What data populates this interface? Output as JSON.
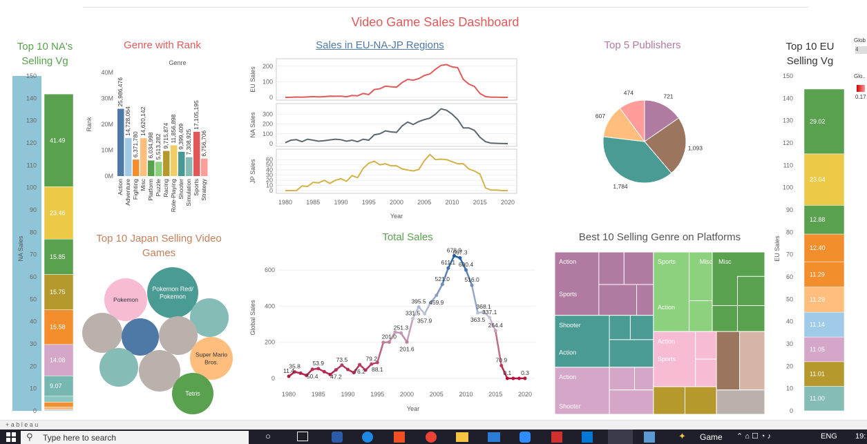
{
  "dashboard_title": "Video Game Sales Dashboard",
  "headers": {
    "na": "Top 10 NA's Selling Vg",
    "genre": "Genre with Rank",
    "regions": "Sales in EU-NA-JP Regions",
    "publishers": "Top 5 Publishers",
    "eu": "Top 10 EU Selling Vg",
    "japan": "Top 10 Japan Selling Video Games",
    "total": "Total Sales",
    "treemap": "Best 10 Selling Genre on Platforms"
  },
  "right_edge": {
    "glob1": "Glob",
    "glob1_val": "4",
    "glob2": "Glo..",
    "glob2_val": "0.17"
  },
  "footer": {
    "brand": "+ a b l e a u"
  },
  "taskbar": {
    "search_placeholder": "Type here to search",
    "game_label": "Game",
    "lang": "ENG",
    "time": "19:"
  },
  "colors": {
    "red": "#e05a5a",
    "slate": "#5b6770",
    "gold": "#d4b24a",
    "blue": "#1f4e79"
  },
  "chart_data": [
    {
      "id": "na_stack",
      "type": "bar",
      "ylabel": "NA Sales",
      "ylim": [
        0,
        150
      ],
      "ticks": [
        0,
        10,
        20,
        30,
        40,
        50,
        60,
        70,
        80,
        90,
        100,
        110,
        120,
        130,
        140,
        150
      ],
      "total_bar_value": 150,
      "segments": [
        {
          "value": 0.5,
          "label": "",
          "color": "#9bc9e6"
        },
        {
          "value": 1.2,
          "label": "",
          "color": "#f6b77b"
        },
        {
          "value": 2.2,
          "label": "",
          "color": "#f28e2b"
        },
        {
          "value": 2.7,
          "label": "",
          "color": "#8bc7bf"
        },
        {
          "value": 9.07,
          "label": "9.07",
          "color": "#76b7b2"
        },
        {
          "value": 14.08,
          "label": "14.08",
          "color": "#d4a6c8"
        },
        {
          "value": 15.58,
          "label": "15.58",
          "color": "#f28e2b"
        },
        {
          "value": 15.75,
          "label": "15.75",
          "color": "#b6992d"
        },
        {
          "value": 15.85,
          "label": "15.85",
          "color": "#59a14f"
        },
        {
          "value": 23.46,
          "label": "23.46",
          "color": "#edc948"
        },
        {
          "value": 41.49,
          "label": "41.49",
          "color": "#59a14f"
        }
      ]
    },
    {
      "id": "genre_rank",
      "type": "bar",
      "title": "Genre",
      "ylabel": "Rank",
      "ylim": [
        0,
        40000000
      ],
      "yticks": [
        "0M",
        "10M",
        "20M",
        "30M",
        "40M"
      ],
      "categories": [
        "Action",
        "Adventure",
        "Fighting",
        "Misc",
        "Platform",
        "Puzzle",
        "Racing",
        "Role-Playing",
        "Shooter",
        "Simulation",
        "Sports",
        "Strategy"
      ],
      "values": [
        25986476,
        14728064,
        6371780,
        14620142,
        6034998,
        5513282,
        9715874,
        11856898,
        9399409,
        7308925,
        17105195,
        6756706
      ],
      "value_labels": [
        "25,986,476",
        "14,728,064",
        "6,371,780",
        "14,620,142",
        "6,034,998",
        "5,513,282",
        "9,715,874",
        "11,856,898",
        "9,399,409",
        "7,308,925",
        "17,105,195",
        "6,756,706"
      ],
      "colors": [
        "#4e79a7",
        "#a0cbe8",
        "#f28e2b",
        "#ffbe7d",
        "#59a14f",
        "#8cd17d",
        "#b6992d",
        "#f1ce63",
        "#499894",
        "#86bcb6",
        "#e15759",
        "#ff9d9a"
      ]
    },
    {
      "id": "regions",
      "type": "line",
      "x": [
        1980,
        1981,
        1982,
        1983,
        1984,
        1985,
        1986,
        1987,
        1988,
        1989,
        1990,
        1991,
        1992,
        1993,
        1994,
        1995,
        1996,
        1997,
        1998,
        1999,
        2000,
        2001,
        2002,
        2003,
        2004,
        2005,
        2006,
        2007,
        2008,
        2009,
        2010,
        2011,
        2012,
        2013,
        2014,
        2015,
        2016,
        2017,
        2018,
        2019,
        2020
      ],
      "xticks": [
        1980,
        1985,
        1990,
        1995,
        2000,
        2005,
        2010,
        2015,
        2020
      ],
      "xlabel": "Year",
      "series": [
        {
          "name": "EU Sales",
          "ylim": [
            0,
            230
          ],
          "yticks": [
            0,
            100,
            200
          ],
          "color": "#e05a5a",
          "values": [
            0,
            0.5,
            2,
            1,
            3,
            5,
            3,
            5,
            8,
            7,
            8,
            4,
            12,
            10,
            25,
            18,
            50,
            55,
            72,
            68,
            65,
            95,
            115,
            110,
            120,
            140,
            150,
            180,
            205,
            210,
            195,
            190,
            115,
            85,
            70,
            25,
            5,
            1,
            1,
            0,
            0
          ]
        },
        {
          "name": "NA Sales",
          "ylim": [
            0,
            380
          ],
          "yticks": [
            0,
            100,
            200,
            300
          ],
          "color": "#5b6770",
          "values": [
            10,
            35,
            40,
            20,
            45,
            35,
            25,
            30,
            38,
            45,
            40,
            25,
            35,
            20,
            45,
            35,
            90,
            100,
            130,
            120,
            115,
            180,
            220,
            195,
            225,
            245,
            260,
            300,
            355,
            340,
            300,
            245,
            160,
            160,
            135,
            65,
            20,
            5,
            3,
            1,
            0
          ]
        },
        {
          "name": "JP Sales",
          "ylim": [
            0,
            75
          ],
          "yticks": [
            0,
            10,
            20,
            30,
            40,
            50,
            60
          ],
          "color": "#d4b24a",
          "values": [
            0,
            0,
            0,
            9,
            8,
            16,
            15,
            20,
            14,
            20,
            23,
            18,
            29,
            25,
            43,
            53,
            57,
            50,
            52,
            48,
            48,
            42,
            40,
            38,
            41,
            58,
            70,
            60,
            61,
            60,
            56,
            52,
            52,
            42,
            38,
            32,
            5,
            1,
            1,
            0,
            0
          ]
        }
      ]
    },
    {
      "id": "publishers",
      "type": "pie",
      "values": [
        721,
        1093,
        1784,
        607,
        474
      ],
      "labels": [
        "721",
        "1,093",
        "1,784",
        "607",
        "474"
      ],
      "colors": [
        "#b07aa1",
        "#9c755f",
        "#4a9b94",
        "#ffbe7d",
        "#ff9d9a"
      ]
    },
    {
      "id": "eu_stack",
      "type": "bar",
      "ylabel": "EU Sales",
      "ylim": [
        0,
        150
      ],
      "ticks": [
        0,
        10,
        20,
        30,
        40,
        50,
        60,
        70,
        80,
        90,
        100,
        110,
        120,
        130,
        140,
        150
      ],
      "segments": [
        {
          "value": 11.0,
          "label": "11.00",
          "color": "#86bcb6"
        },
        {
          "value": 11.01,
          "label": "11.01",
          "color": "#b6992d"
        },
        {
          "value": 11.05,
          "label": "11.05",
          "color": "#d4a6c8"
        },
        {
          "value": 11.14,
          "label": "11.14",
          "color": "#a0cbe8"
        },
        {
          "value": 11.29,
          "label": "11.29",
          "color": "#ffbe7d"
        },
        {
          "value": 11.29,
          "label": "11.29",
          "color": "#f28e2b"
        },
        {
          "value": 12.4,
          "label": "12.40",
          "color": "#f28e2b"
        },
        {
          "value": 12.88,
          "label": "12.88",
          "color": "#59a14f"
        },
        {
          "value": 23.04,
          "label": "23.04",
          "color": "#edc948"
        },
        {
          "value": 29.02,
          "label": "29.02",
          "color": "#59a14f"
        }
      ]
    },
    {
      "id": "japan_bubbles",
      "type": "scatter",
      "bubbles": [
        {
          "label": "Pokemon",
          "color": "#f7bcd4"
        },
        {
          "label": "Pokemon Red/Pokemon",
          "color": "#4a9b94"
        },
        {
          "label": "",
          "color": "#86bcb6"
        },
        {
          "label": "",
          "color": "#bab0ac"
        },
        {
          "label": "",
          "color": "#4e79a7"
        },
        {
          "label": "",
          "color": "#bab0ac"
        },
        {
          "label": "Super Mario Bros.",
          "color": "#ffbe7d"
        },
        {
          "label": "",
          "color": "#86bcb6"
        },
        {
          "label": "",
          "color": "#bab0ac"
        },
        {
          "label": "Tetris",
          "color": "#59a14f"
        }
      ]
    },
    {
      "id": "total_sales",
      "type": "line",
      "xlabel": "Year",
      "ylabel": "Global Sales",
      "ylim": [
        0,
        700
      ],
      "yticks": [
        0,
        200,
        400,
        600
      ],
      "xticks": [
        1980,
        1985,
        1990,
        1995,
        2000,
        2005,
        2010,
        2015,
        2020
      ],
      "x": [
        1980,
        1981,
        1982,
        1983,
        1984,
        1985,
        1986,
        1987,
        1988,
        1989,
        1990,
        1991,
        1992,
        1993,
        1994,
        1995,
        1996,
        1997,
        1998,
        1999,
        2000,
        2001,
        2002,
        2003,
        2004,
        2005,
        2006,
        2007,
        2008,
        2009,
        2010,
        2011,
        2012,
        2013,
        2014,
        2015,
        2016,
        2017,
        2018,
        2019,
        2020
      ],
      "values": [
        11.4,
        35.8,
        28.9,
        16.8,
        50.4,
        53.9,
        37.1,
        21.7,
        47.2,
        73.5,
        49.4,
        32.2,
        76.2,
        45.9,
        79.2,
        88.1,
        199.2,
        201.0,
        256.5,
        251.3,
        201.6,
        331.5,
        395.5,
        357.9,
        419.3,
        459.9,
        521.0,
        611.1,
        678.9,
        667.3,
        600.4,
        516.0,
        363.5,
        368.1,
        337.1,
        264.4,
        70.9,
        0.1,
        0.1,
        0.1,
        0.3
      ],
      "labels": [
        {
          "x": 1980,
          "text": "11.4"
        },
        {
          "x": 1981,
          "text": "35.8"
        },
        {
          "x": 1984,
          "text": "50.4"
        },
        {
          "x": 1985,
          "text": "53.9"
        },
        {
          "x": 1988,
          "text": "47.2"
        },
        {
          "x": 1989,
          "text": "73.5"
        },
        {
          "x": 1992,
          "text": "76.2"
        },
        {
          "x": 1994,
          "text": "79.2"
        },
        {
          "x": 1995,
          "text": "88.1"
        },
        {
          "x": 1997,
          "text": "201.0"
        },
        {
          "x": 1999,
          "text": "251.3"
        },
        {
          "x": 2000,
          "text": "201.6"
        },
        {
          "x": 2001,
          "text": "331.5"
        },
        {
          "x": 2002,
          "text": "395.5"
        },
        {
          "x": 2003,
          "text": "357.9"
        },
        {
          "x": 2005,
          "text": "459.9"
        },
        {
          "x": 2006,
          "text": "521.0"
        },
        {
          "x": 2007,
          "text": "611.1"
        },
        {
          "x": 2008,
          "text": "678.9"
        },
        {
          "x": 2009,
          "text": "667.3"
        },
        {
          "x": 2010,
          "text": "600.4"
        },
        {
          "x": 2011,
          "text": "516.0"
        },
        {
          "x": 2012,
          "text": "363.5"
        },
        {
          "x": 2013,
          "text": "368.1"
        },
        {
          "x": 2014,
          "text": "337.1"
        },
        {
          "x": 2015,
          "text": "264.4"
        },
        {
          "x": 2016,
          "text": "70.9"
        },
        {
          "x": 2017,
          "text": "0.1"
        },
        {
          "x": 2020,
          "text": "0.3"
        }
      ]
    },
    {
      "id": "treemap",
      "type": "heatmap",
      "labels": [
        "Action",
        "Sports",
        "Shooter",
        "Action",
        "Action",
        "Shooter",
        "Sports",
        "Misc",
        "Misc",
        "Action",
        "Action",
        "Sports"
      ]
    }
  ]
}
